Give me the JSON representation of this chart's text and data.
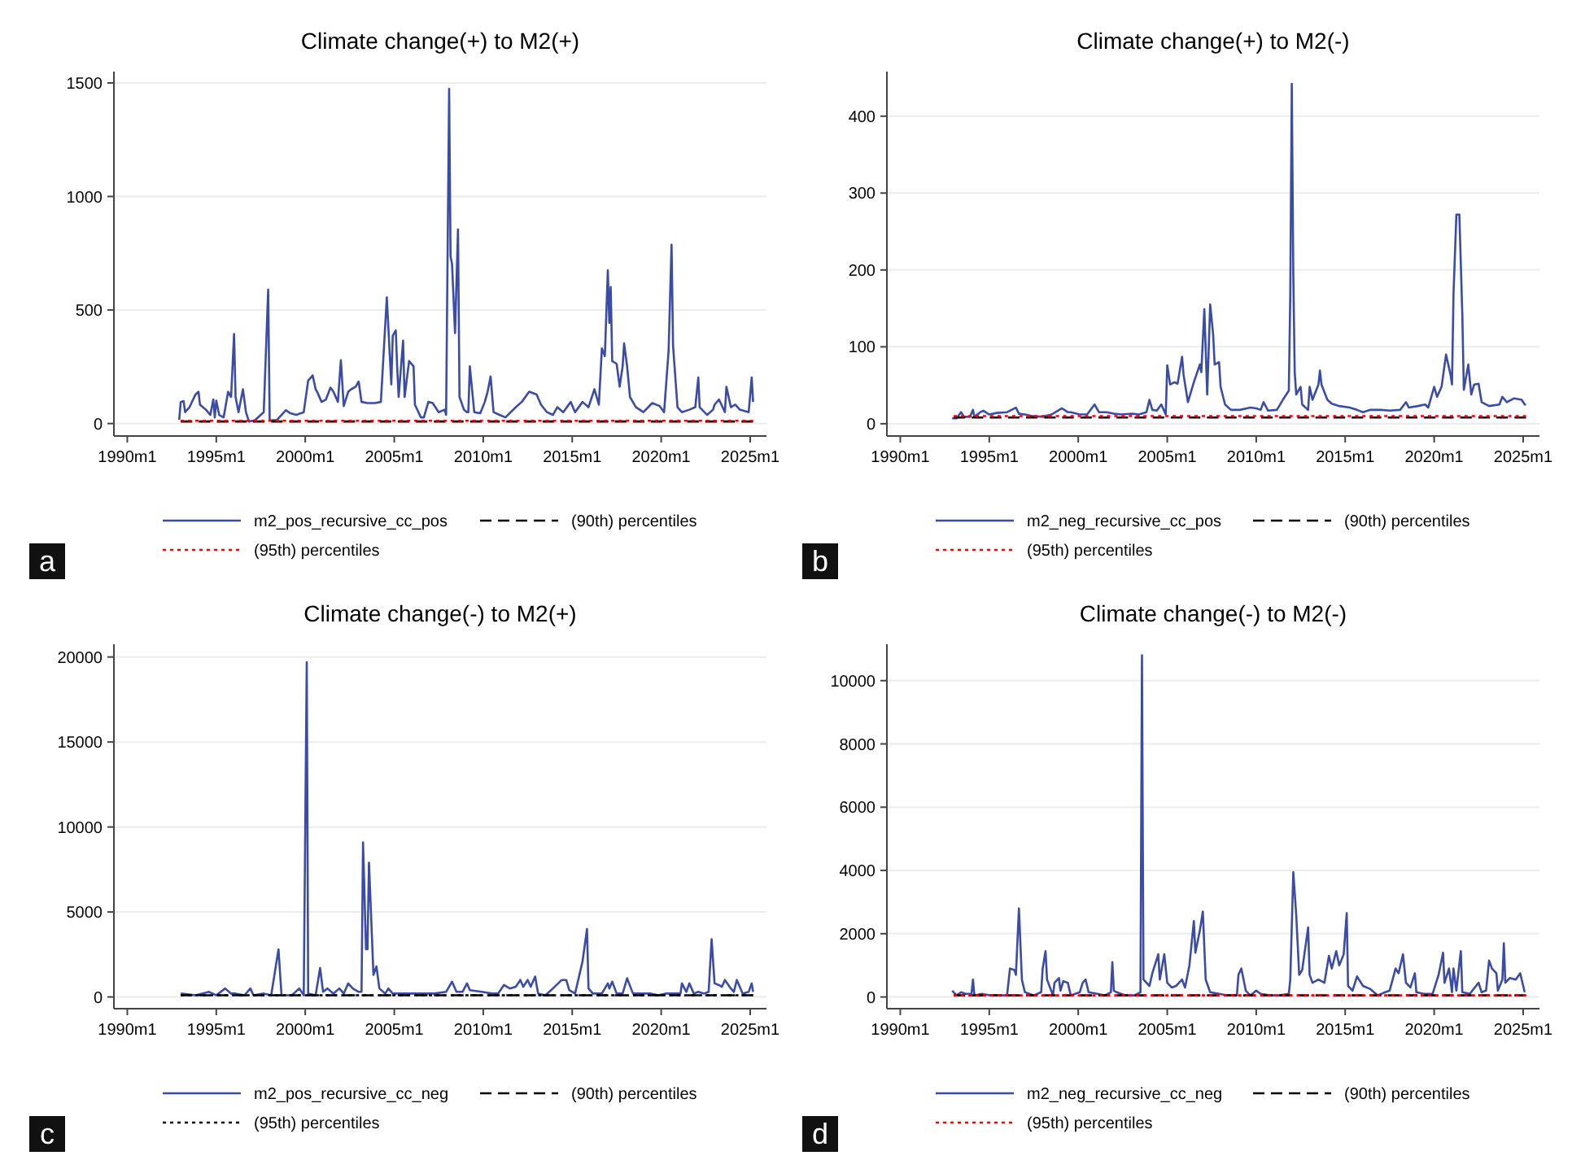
{
  "chart_data": [
    {
      "type": "line",
      "title": "Climate change(+) to M2(+)",
      "legend": "bottom",
      "grid": "y",
      "annotations": [
        "a"
      ],
      "xlim": [
        "1989-04",
        "2025-12"
      ],
      "xticks": [
        {
          "value": "1990-01",
          "label": "1990m1"
        },
        {
          "value": "1995-01",
          "label": "1995m1"
        },
        {
          "value": "2000-01",
          "label": "2000m1"
        },
        {
          "value": "2005-01",
          "label": "2005m1"
        },
        {
          "value": "2010-01",
          "label": "2010m1"
        },
        {
          "value": "2015-01",
          "label": "2015m1"
        },
        {
          "value": "2020-01",
          "label": "2020m1"
        },
        {
          "value": "2025-01",
          "label": "2025m1"
        }
      ],
      "ylim": [
        -55,
        1550
      ],
      "yticks": [
        0,
        500,
        1000,
        1500
      ],
      "series": [
        {
          "name": "m2_pos_recursive_cc_pos",
          "color": "#3a4ca8",
          "line_style": "solid",
          "x": [
            "1992-12",
            "1993-01",
            "1993-03",
            "1993-04",
            "1993-07",
            "1993-11",
            "1994-01",
            "1994-02",
            "1994-06",
            "1994-09",
            "1994-11",
            "1994-12",
            "1995-01",
            "1995-03",
            "1995-06",
            "1995-09",
            "1995-11",
            "1996-01",
            "1996-02",
            "1996-04",
            "1996-07",
            "1996-09",
            "1996-11",
            "1997-03",
            "1997-09",
            "1997-12",
            "1998-01",
            "1998-06",
            "1998-09",
            "1998-12",
            "1999-03",
            "1999-07",
            "1999-12",
            "2000-03",
            "2000-06",
            "2000-08",
            "2000-09",
            "2000-12",
            "2001-03",
            "2001-06",
            "2001-08",
            "2001-11",
            "2002-01",
            "2002-03",
            "2002-06",
            "2002-08",
            "2002-11",
            "2003-01",
            "2003-03",
            "2003-07",
            "2003-12",
            "2004-04",
            "2004-08",
            "2004-11",
            "2004-12",
            "2005-02",
            "2005-03",
            "2005-04",
            "2005-07",
            "2005-08",
            "2005-11",
            "2006-02",
            "2006-03",
            "2006-07",
            "2006-09",
            "2006-12",
            "2007-03",
            "2007-07",
            "2007-11",
            "2007-12",
            "2008-02",
            "2008-03",
            "2008-04",
            "2008-06",
            "2008-08",
            "2008-09",
            "2008-12",
            "2009-02",
            "2009-03",
            "2009-04",
            "2009-07",
            "2009-11",
            "2010-02",
            "2010-04",
            "2010-06",
            "2010-08",
            "2010-12",
            "2011-04",
            "2011-11",
            "2012-03",
            "2012-08",
            "2013-01",
            "2013-04",
            "2013-08",
            "2013-12",
            "2014-03",
            "2014-07",
            "2014-12",
            "2015-03",
            "2015-08",
            "2015-12",
            "2016-04",
            "2016-07",
            "2016-09",
            "2016-11",
            "2017-01",
            "2017-02",
            "2017-03",
            "2017-04",
            "2017-07",
            "2017-09",
            "2017-11",
            "2017-12",
            "2018-02",
            "2018-04",
            "2018-08",
            "2019-01",
            "2019-07",
            "2019-12",
            "2020-03",
            "2020-06",
            "2020-08",
            "2020-09",
            "2020-12",
            "2021-03",
            "2021-08",
            "2021-12",
            "2022-02",
            "2022-03",
            "2022-08",
            "2022-12",
            "2023-01",
            "2023-04",
            "2023-08",
            "2023-09",
            "2023-12",
            "2024-03",
            "2024-06",
            "2024-12",
            "2025-02",
            "2025-03"
          ],
          "values": [
            16,
            95,
            99,
            50,
            72,
            128,
            140,
            83,
            61,
            38,
            106,
            27,
            101,
            38,
            27,
            140,
            117,
            394,
            117,
            50,
            151,
            50,
            9,
            14,
            50,
            590,
            14,
            16,
            38,
            59,
            45,
            38,
            50,
            189,
            212,
            151,
            140,
            95,
            106,
            158,
            140,
            95,
            279,
            77,
            140,
            151,
            162,
            185,
            95,
            90,
            90,
            95,
            556,
            173,
            387,
            410,
            252,
            117,
            365,
            117,
            275,
            252,
            83,
            27,
            27,
            95,
            90,
            50,
            61,
            38,
            1474,
            736,
            702,
            398,
            855,
            117,
            61,
            50,
            50,
            252,
            50,
            45,
            95,
            140,
            207,
            50,
            38,
            27,
            72,
            95,
            140,
            128,
            83,
            50,
            38,
            72,
            50,
            95,
            50,
            95,
            72,
            151,
            83,
            331,
            297,
            675,
            443,
            601,
            275,
            263,
            162,
            252,
            353,
            252,
            117,
            72,
            50,
            90,
            77,
            50,
            320,
            788,
            342,
            72,
            50,
            61,
            72,
            203,
            72,
            38,
            61,
            83,
            106,
            50,
            162,
            72,
            83,
            61,
            50,
            203,
            95
          ]
        },
        {
          "name": "(90th) percentiles",
          "color": "#000000",
          "line_style": "dashed",
          "x": [
            "1993-01",
            "2025-03"
          ],
          "values": [
            9,
            9
          ]
        },
        {
          "name": "(95th) percentiles",
          "color": "#ff0000",
          "line_style": "dotted",
          "x": [
            "1993-01",
            "2025-03"
          ],
          "values": [
            12,
            12
          ]
        }
      ]
    },
    {
      "type": "line",
      "title": "Climate change(+) to M2(-)",
      "legend": "bottom",
      "grid": "y",
      "annotations": [
        "b"
      ],
      "xlim": [
        "1989-04",
        "2025-12"
      ],
      "xticks": [
        {
          "value": "1990-01",
          "label": "1990m1"
        },
        {
          "value": "1995-01",
          "label": "1995m1"
        },
        {
          "value": "2000-01",
          "label": "2000m1"
        },
        {
          "value": "2005-01",
          "label": "2005m1"
        },
        {
          "value": "2010-01",
          "label": "2010m1"
        },
        {
          "value": "2015-01",
          "label": "2015m1"
        },
        {
          "value": "2020-01",
          "label": "2020m1"
        },
        {
          "value": "2025-01",
          "label": "2025m1"
        }
      ],
      "ylim": [
        -16,
        458
      ],
      "yticks": [
        0,
        100,
        200,
        300,
        400
      ],
      "series": [
        {
          "name": "m2_neg_recursive_cc_pos",
          "color": "#3a4ca8",
          "line_style": "solid",
          "x": [
            "1992-12",
            "1993-03",
            "1993-06",
            "1993-08",
            "1993-12",
            "1994-02",
            "1994-03",
            "1994-07",
            "1994-09",
            "1995-01",
            "1995-06",
            "1996-01",
            "1996-07",
            "1996-09",
            "1997-01",
            "1997-06",
            "1998-01",
            "1998-07",
            "1999-02",
            "1999-06",
            "1999-08",
            "2000-02",
            "2000-07",
            "2000-12",
            "2001-03",
            "2001-08",
            "2002-01",
            "2002-06",
            "2003-01",
            "2003-06",
            "2003-11",
            "2004-01",
            "2004-03",
            "2004-06",
            "2004-09",
            "2004-12",
            "2005-01",
            "2005-03",
            "2005-06",
            "2005-08",
            "2005-11",
            "2005-12",
            "2006-03",
            "2006-07",
            "2006-11",
            "2006-12",
            "2007-02",
            "2007-04",
            "2007-06",
            "2007-08",
            "2007-09",
            "2007-12",
            "2008-01",
            "2008-04",
            "2008-08",
            "2009-02",
            "2009-09",
            "2010-01",
            "2010-04",
            "2010-06",
            "2010-09",
            "2011-03",
            "2011-07",
            "2011-11",
            "2011-12",
            "2012-01",
            "2012-02",
            "2012-03",
            "2012-04",
            "2012-07",
            "2012-08",
            "2012-12",
            "2013-01",
            "2013-03",
            "2013-07",
            "2013-08",
            "2013-09",
            "2014-01",
            "2014-04",
            "2014-09",
            "2015-04",
            "2015-09",
            "2016-01",
            "2016-06",
            "2017-01",
            "2017-07",
            "2018-02",
            "2018-06",
            "2018-08",
            "2019-02",
            "2019-07",
            "2019-09",
            "2020-01",
            "2020-03",
            "2020-06",
            "2020-09",
            "2020-12",
            "2021-01",
            "2021-02",
            "2021-04",
            "2021-06",
            "2021-08",
            "2021-09",
            "2021-12",
            "2022-02",
            "2022-04",
            "2022-07",
            "2022-09",
            "2023-02",
            "2023-09",
            "2023-11",
            "2024-02",
            "2024-07",
            "2024-12",
            "2025-02",
            "2025-03"
          ],
          "values": [
            7,
            7,
            15,
            9,
            9,
            18,
            9,
            15,
            17,
            12,
            14,
            15,
            21,
            13,
            12,
            10,
            9,
            12,
            20,
            15,
            15,
            12,
            12,
            25,
            15,
            15,
            13,
            12,
            13,
            12,
            15,
            31,
            18,
            17,
            25,
            12,
            76,
            51,
            54,
            52,
            87,
            64,
            28,
            54,
            77,
            67,
            149,
            38,
            155,
            116,
            77,
            80,
            48,
            25,
            18,
            18,
            21,
            20,
            18,
            28,
            17,
            18,
            31,
            43,
            168,
            442,
            194,
            67,
            38,
            48,
            25,
            18,
            48,
            31,
            51,
            69,
            51,
            31,
            26,
            23,
            21,
            18,
            15,
            18,
            18,
            17,
            18,
            28,
            21,
            23,
            25,
            21,
            48,
            35,
            48,
            90,
            64,
            51,
            168,
            272,
            272,
            142,
            44,
            77,
            38,
            51,
            52,
            28,
            23,
            25,
            35,
            28,
            33,
            31,
            25,
            25
          ]
        },
        {
          "name": "(90th) percentiles",
          "color": "#000000",
          "line_style": "dashed",
          "x": [
            "1993-01",
            "2025-03"
          ],
          "values": [
            8,
            8
          ]
        },
        {
          "name": "(95th) percentiles",
          "color": "#ff0000",
          "line_style": "dotted",
          "x": [
            "1993-01",
            "2025-03"
          ],
          "values": [
            10,
            10
          ]
        }
      ]
    },
    {
      "type": "line",
      "title": "Climate change(-) to M2(+)",
      "legend": "bottom",
      "grid": "y",
      "annotations": [
        "c"
      ],
      "xlim": [
        "1989-04",
        "2025-12"
      ],
      "xticks": [
        {
          "value": "1990-01",
          "label": "1990m1"
        },
        {
          "value": "1995-01",
          "label": "1995m1"
        },
        {
          "value": "2000-01",
          "label": "2000m1"
        },
        {
          "value": "2005-01",
          "label": "2005m1"
        },
        {
          "value": "2010-01",
          "label": "2010m1"
        },
        {
          "value": "2015-01",
          "label": "2015m1"
        },
        {
          "value": "2020-01",
          "label": "2020m1"
        },
        {
          "value": "2025-01",
          "label": "2025m1"
        }
      ],
      "ylim": [
        -690,
        20750
      ],
      "yticks": [
        0,
        5000,
        10000,
        15000,
        20000
      ],
      "series": [
        {
          "name": "m2_pos_recursive_cc_neg",
          "color": "#3a4ca8",
          "line_style": "solid",
          "x": [
            "1993-01",
            "1993-11",
            "1994-08",
            "1995-01",
            "1995-07",
            "1995-11",
            "1996-02",
            "1996-08",
            "1996-12",
            "1997-02",
            "1997-09",
            "1998-02",
            "1998-07",
            "1998-09",
            "1999-04",
            "1999-09",
            "1999-12",
            "2000-02",
            "2000-03",
            "2000-08",
            "2000-11",
            "2001-01",
            "2001-04",
            "2001-08",
            "2001-12",
            "2002-03",
            "2002-06",
            "2002-09",
            "2003-01",
            "2003-03",
            "2003-04",
            "2003-06",
            "2003-07",
            "2003-08",
            "2003-11",
            "2004-01",
            "2004-03",
            "2004-07",
            "2004-09",
            "2004-12",
            "2005-04",
            "2005-09",
            "2006-03",
            "2006-11",
            "2007-04",
            "2007-12",
            "2008-04",
            "2008-07",
            "2008-11",
            "2009-02",
            "2009-04",
            "2009-12",
            "2010-07",
            "2010-11",
            "2011-03",
            "2011-07",
            "2011-11",
            "2012-02",
            "2012-04",
            "2012-07",
            "2012-09",
            "2012-12",
            "2013-02",
            "2013-07",
            "2013-12",
            "2014-06",
            "2014-09",
            "2014-11",
            "2015-03",
            "2015-08",
            "2015-11",
            "2015-12",
            "2016-03",
            "2016-09",
            "2017-01",
            "2017-02",
            "2017-04",
            "2017-07",
            "2017-11",
            "2018-02",
            "2018-06",
            "2018-11",
            "2019-06",
            "2019-11",
            "2020-04",
            "2020-09",
            "2021-02",
            "2021-03",
            "2021-06",
            "2021-08",
            "2021-11",
            "2022-02",
            "2022-06",
            "2022-09",
            "2022-11",
            "2023-01",
            "2023-04",
            "2023-06",
            "2023-08",
            "2023-12",
            "2024-02",
            "2024-04",
            "2024-08",
            "2024-12",
            "2025-02",
            "2025-03"
          ],
          "values": [
            200,
            100,
            300,
            100,
            500,
            200,
            200,
            100,
            500,
            100,
            200,
            100,
            2800,
            100,
            100,
            500,
            100,
            19700,
            200,
            100,
            1700,
            300,
            500,
            200,
            500,
            200,
            800,
            500,
            300,
            300,
            9100,
            2800,
            2800,
            7900,
            1300,
            1800,
            500,
            200,
            500,
            200,
            200,
            200,
            200,
            200,
            200,
            300,
            900,
            300,
            300,
            800,
            400,
            300,
            200,
            200,
            700,
            500,
            600,
            1000,
            600,
            1000,
            600,
            1200,
            200,
            100,
            500,
            1000,
            1000,
            400,
            200,
            2100,
            4000,
            500,
            200,
            200,
            800,
            500,
            900,
            200,
            200,
            1100,
            200,
            200,
            200,
            100,
            200,
            200,
            200,
            800,
            300,
            800,
            200,
            300,
            200,
            300,
            3400,
            800,
            700,
            600,
            1000,
            500,
            300,
            1000,
            200,
            300,
            800,
            300
          ]
        },
        {
          "name": "(90th) percentiles",
          "color": "#000000",
          "line_style": "dashed",
          "x": [
            "1993-01",
            "2025-03"
          ],
          "values": [
            100,
            100
          ]
        },
        {
          "name": "(95th) percentiles",
          "color": "#000000",
          "line_style": "dotted",
          "x": [
            "1993-01",
            "2025-03"
          ],
          "values": [
            100,
            100
          ]
        }
      ]
    },
    {
      "type": "line",
      "title": "Climate change(-) to M2(-)",
      "legend": "bottom",
      "grid": "y",
      "annotations": [
        "d"
      ],
      "xlim": [
        "1989-04",
        "2025-12"
      ],
      "xticks": [
        {
          "value": "1990-01",
          "label": "1990m1"
        },
        {
          "value": "1995-01",
          "label": "1995m1"
        },
        {
          "value": "2000-01",
          "label": "2000m1"
        },
        {
          "value": "2005-01",
          "label": "2005m1"
        },
        {
          "value": "2010-01",
          "label": "2010m1"
        },
        {
          "value": "2015-01",
          "label": "2015m1"
        },
        {
          "value": "2020-01",
          "label": "2020m1"
        },
        {
          "value": "2025-01",
          "label": "2025m1"
        }
      ],
      "ylim": [
        -370,
        11150
      ],
      "yticks": [
        0,
        2000,
        4000,
        6000,
        8000,
        10000
      ],
      "series": [
        {
          "name": "m2_neg_recursive_cc_neg",
          "color": "#3a4ca8",
          "line_style": "solid",
          "x": [
            "1992-12",
            "1993-03",
            "1993-06",
            "1993-09",
            "1994-01",
            "1994-02",
            "1994-03",
            "1994-08",
            "1995-02",
            "1995-09",
            "1996-01",
            "1996-03",
            "1996-06",
            "1996-07",
            "1996-09",
            "1996-11",
            "1997-01",
            "1997-07",
            "1997-12",
            "1998-01",
            "1998-03",
            "1998-04",
            "1998-08",
            "1998-09",
            "1998-12",
            "1999-01",
            "1999-03",
            "1999-06",
            "1999-08",
            "2000-02",
            "2000-04",
            "2000-06",
            "2000-08",
            "2001-02",
            "2001-07",
            "2001-11",
            "2001-12",
            "2002-01",
            "2002-03",
            "2002-09",
            "2003-03",
            "2003-07",
            "2003-08",
            "2003-09",
            "2004-01",
            "2004-03",
            "2004-07",
            "2004-08",
            "2004-11",
            "2005-01",
            "2005-04",
            "2005-07",
            "2005-11",
            "2006-01",
            "2006-04",
            "2006-07",
            "2006-08",
            "2006-11",
            "2007-01",
            "2007-03",
            "2007-06",
            "2007-12",
            "2008-06",
            "2008-12",
            "2009-01",
            "2009-03",
            "2009-06",
            "2009-09",
            "2010-01",
            "2010-04",
            "2010-11",
            "2011-04",
            "2011-11",
            "2011-12",
            "2012-02",
            "2012-04",
            "2012-06",
            "2012-08",
            "2012-12",
            "2013-01",
            "2013-03",
            "2013-07",
            "2013-11",
            "2014-02",
            "2014-04",
            "2014-07",
            "2014-09",
            "2014-12",
            "2015-02",
            "2015-03",
            "2015-06",
            "2015-09",
            "2016-01",
            "2016-06",
            "2016-11",
            "2017-04",
            "2017-07",
            "2017-11",
            "2018-01",
            "2018-04",
            "2018-06",
            "2018-09",
            "2018-12",
            "2019-01",
            "2019-06",
            "2019-12",
            "2020-04",
            "2020-07",
            "2020-08",
            "2020-11",
            "2021-01",
            "2021-02",
            "2021-04",
            "2021-07",
            "2021-08",
            "2022-01",
            "2022-07",
            "2022-09",
            "2022-12",
            "2023-02",
            "2023-04",
            "2023-07",
            "2023-08",
            "2023-11",
            "2023-12",
            "2024-01",
            "2024-04",
            "2024-08",
            "2024-11",
            "2025-01",
            "2025-02"
          ],
          "values": [
            200,
            50,
            150,
            100,
            100,
            550,
            50,
            100,
            50,
            50,
            50,
            900,
            850,
            700,
            2800,
            550,
            150,
            50,
            150,
            900,
            1450,
            550,
            50,
            450,
            600,
            200,
            500,
            450,
            50,
            150,
            450,
            550,
            150,
            100,
            50,
            150,
            1100,
            200,
            150,
            50,
            50,
            150,
            10800,
            550,
            350,
            750,
            1350,
            550,
            1350,
            450,
            300,
            350,
            550,
            300,
            1000,
            2400,
            1400,
            2100,
            2700,
            550,
            150,
            100,
            50,
            50,
            700,
            900,
            200,
            50,
            200,
            100,
            50,
            50,
            100,
            550,
            3950,
            2600,
            700,
            850,
            2200,
            700,
            450,
            550,
            450,
            1300,
            900,
            1450,
            1000,
            1350,
            2650,
            350,
            200,
            650,
            350,
            250,
            50,
            150,
            200,
            900,
            750,
            1350,
            450,
            300,
            750,
            150,
            100,
            100,
            700,
            1400,
            450,
            900,
            150,
            900,
            200,
            1450,
            150,
            100,
            450,
            150,
            200,
            1150,
            900,
            750,
            200,
            550,
            1700,
            450,
            600,
            550,
            750,
            350,
            150
          ]
        },
        {
          "name": "(90th) percentiles",
          "color": "#000000",
          "line_style": "dashed",
          "x": [
            "1993-01",
            "2025-03"
          ],
          "values": [
            50,
            50
          ]
        },
        {
          "name": "(95th) percentiles",
          "color": "#ff0000",
          "line_style": "dotted",
          "x": [
            "1993-01",
            "2025-03"
          ],
          "values": [
            50,
            50
          ]
        }
      ]
    }
  ]
}
